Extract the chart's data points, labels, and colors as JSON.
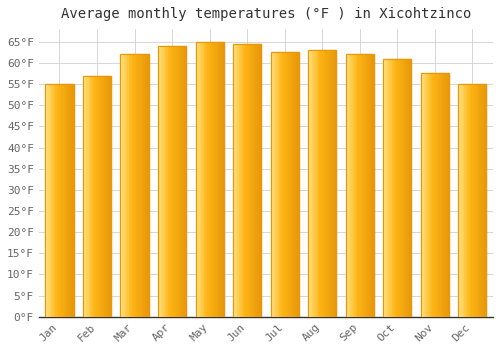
{
  "title": "Average monthly temperatures (°F ) in Xicohtzinco",
  "months": [
    "Jan",
    "Feb",
    "Mar",
    "Apr",
    "May",
    "Jun",
    "Jul",
    "Aug",
    "Sep",
    "Oct",
    "Nov",
    "Dec"
  ],
  "values": [
    55,
    57,
    62,
    64,
    65,
    64.5,
    62.5,
    63,
    62,
    61,
    57.5,
    55
  ],
  "bar_color_main": "#FDB515",
  "bar_color_edge": "#E8960A",
  "bar_color_light": "#FFE080",
  "background_color": "#ffffff",
  "plot_bg_color": "#ffffff",
  "ylim": [
    0,
    68
  ],
  "ytick_step": 5,
  "grid_color": "#d0d0d0",
  "title_fontsize": 10,
  "tick_fontsize": 8,
  "bar_width": 0.75
}
